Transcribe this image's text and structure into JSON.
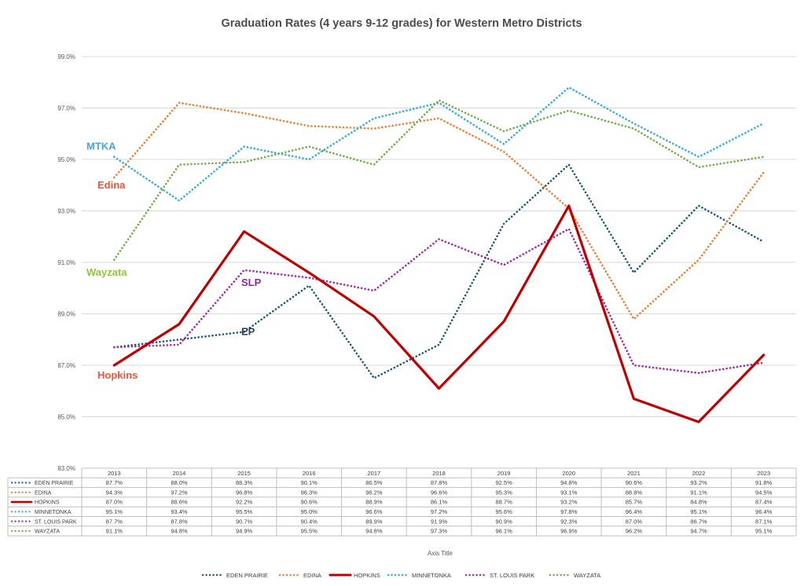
{
  "chart_data": {
    "type": "line",
    "title": "Graduation Rates (4 years 9-12 grades) for Western Metro Districts",
    "xlabel": "Axis Title",
    "ylabel": "",
    "ylim": [
      83.0,
      99.0
    ],
    "yticks": [
      "83.0%",
      "85.0%",
      "87.0%",
      "89.0%",
      "91.0%",
      "93.0%",
      "95.0%",
      "97.0%",
      "99.0%"
    ],
    "ytick_values": [
      83,
      85,
      87,
      89,
      91,
      93,
      95,
      97,
      99
    ],
    "categories": [
      "2013",
      "2014",
      "2015",
      "2016",
      "2017",
      "2018",
      "2019",
      "2020",
      "2021",
      "2022",
      "2023"
    ],
    "series": [
      {
        "name": "EDEN PRAIRIE",
        "color": "#1f5a72",
        "style": "dotted",
        "values": [
          87.7,
          88.0,
          88.3,
          90.1,
          86.5,
          87.8,
          92.5,
          94.8,
          90.6,
          93.2,
          91.8
        ],
        "labels": [
          "87.7%",
          "88.0%",
          "88.3%",
          "90.1%",
          "86.5%",
          "87.8%",
          "92.5%",
          "94.8%",
          "90.6%",
          "93.2%",
          "91.8%"
        ]
      },
      {
        "name": "EDINA",
        "color": "#ed7d31",
        "style": "dotted",
        "values": [
          94.3,
          97.2,
          96.8,
          96.3,
          96.2,
          96.6,
          95.3,
          93.1,
          88.8,
          91.1,
          94.5
        ],
        "labels": [
          "94.3%",
          "97.2%",
          "96.8%",
          "96.3%",
          "96.2%",
          "96.6%",
          "95.3%",
          "93.1%",
          "88.8%",
          "91.1%",
          "94.5%"
        ]
      },
      {
        "name": "HOPKINS",
        "color": "#c00000",
        "style": "solid",
        "values": [
          87.0,
          88.6,
          92.2,
          90.6,
          88.9,
          86.1,
          88.7,
          93.2,
          85.7,
          84.8,
          87.4
        ],
        "labels": [
          "87.0%",
          "88.6%",
          "92.2%",
          "90.6%",
          "88.9%",
          "86.1%",
          "88.7%",
          "93.2%",
          "85.7%",
          "84.8%",
          "87.4%"
        ]
      },
      {
        "name": "MINNETONKA",
        "color": "#2eaedb",
        "style": "dotted",
        "values": [
          95.1,
          93.4,
          95.5,
          95.0,
          96.6,
          97.2,
          95.6,
          97.8,
          96.4,
          95.1,
          96.4
        ],
        "labels": [
          "95.1%",
          "93.4%",
          "95.5%",
          "95.0%",
          "96.6%",
          "97.2%",
          "95.6%",
          "97.8%",
          "96.4%",
          "95.1%",
          "96.4%"
        ]
      },
      {
        "name": "ST. LOUIS PARK",
        "color": "#a12aa6",
        "style": "dotted",
        "values": [
          87.7,
          87.8,
          90.7,
          90.4,
          89.9,
          91.9,
          90.9,
          92.3,
          87.0,
          86.7,
          87.1
        ],
        "labels": [
          "87.7%",
          "87.8%",
          "90.7%",
          "90.4%",
          "89.9%",
          "91.9%",
          "90.9%",
          "92.3%",
          "87.0%",
          "86.7%",
          "87.1%"
        ]
      },
      {
        "name": "WAYZATA",
        "color": "#70ad47",
        "style": "dotted",
        "values": [
          91.1,
          94.8,
          94.9,
          95.5,
          94.8,
          97.3,
          96.1,
          96.9,
          96.2,
          94.7,
          95.1
        ],
        "labels": [
          "91.1%",
          "94.8%",
          "94.9%",
          "95.5%",
          "94.8%",
          "97.3%",
          "96.1%",
          "96.9%",
          "96.2%",
          "94.7%",
          "95.1%"
        ]
      }
    ],
    "annotations": [
      {
        "text": "MTKA",
        "color": "#4aa3df",
        "value": 95.5
      },
      {
        "text": "Edina",
        "color": "#f0533b",
        "value": 94.0
      },
      {
        "text": "Wayzata",
        "color": "#92c43c",
        "value": 90.6
      },
      {
        "text": "SLP",
        "color": "#8b2a9c",
        "value": 90.2
      },
      {
        "text": "EP",
        "color": "#2b3f55",
        "value": 88.3
      },
      {
        "text": "Hopkins",
        "color": "#f0533b",
        "value": 86.6
      }
    ]
  }
}
